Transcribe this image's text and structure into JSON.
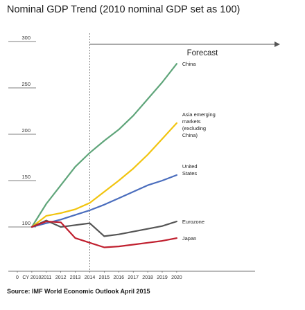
{
  "title": "Nominal GDP Trend (2010 nominal GDP set as 100)",
  "source": "Source: IMF World Economic Outlook April 2015",
  "forecast_label": "Forecast",
  "colors": {
    "China": "#5fa57a",
    "Asia emerging": "#f1c40f",
    "United States": "#4a6dbd",
    "Eurozone": "#555555",
    "Japan": "#c0202f"
  },
  "chart_data": {
    "type": "line",
    "title": "Nominal GDP Trend (2010 nominal GDP set as 100)",
    "x_tick_labels": [
      "0",
      "CY 2010",
      "2011",
      "2012",
      "2013",
      "2014",
      "2015",
      "2016",
      "2017",
      "2018",
      "2019",
      "2020"
    ],
    "x": [
      "CY 2010",
      "2011",
      "2012",
      "2013",
      "2014",
      "2015",
      "2016",
      "2017",
      "2018",
      "2019",
      "2020"
    ],
    "y_ticks": [
      100,
      150,
      200,
      250,
      300
    ],
    "ylim": [
      0,
      300
    ],
    "forecast_start": "2014",
    "grid": false,
    "series": [
      {
        "name": "China",
        "label_lines": [
          "China"
        ],
        "values": [
          100,
          125,
          145,
          165,
          180,
          193,
          205,
          220,
          238,
          256,
          276
        ]
      },
      {
        "name": "Asia emerging",
        "label_lines": [
          "Asia emerging",
          "markets",
          "(excluding",
          "China)"
        ],
        "values": [
          100,
          112,
          115,
          119,
          126,
          138,
          150,
          163,
          178,
          195,
          212
        ]
      },
      {
        "name": "United States",
        "label_lines": [
          "United",
          "States"
        ],
        "values": [
          100,
          104,
          108,
          113,
          118,
          124,
          131,
          138,
          145,
          150,
          156
        ]
      },
      {
        "name": "Eurozone",
        "label_lines": [
          "Eurozone"
        ],
        "values": [
          100,
          107,
          100,
          102,
          104,
          90,
          92,
          95,
          98,
          101,
          106
        ]
      },
      {
        "name": "Japan",
        "label_lines": [
          "Japan"
        ],
        "values": [
          100,
          106,
          105,
          88,
          83,
          78,
          79,
          81,
          83,
          85,
          88
        ]
      }
    ]
  }
}
